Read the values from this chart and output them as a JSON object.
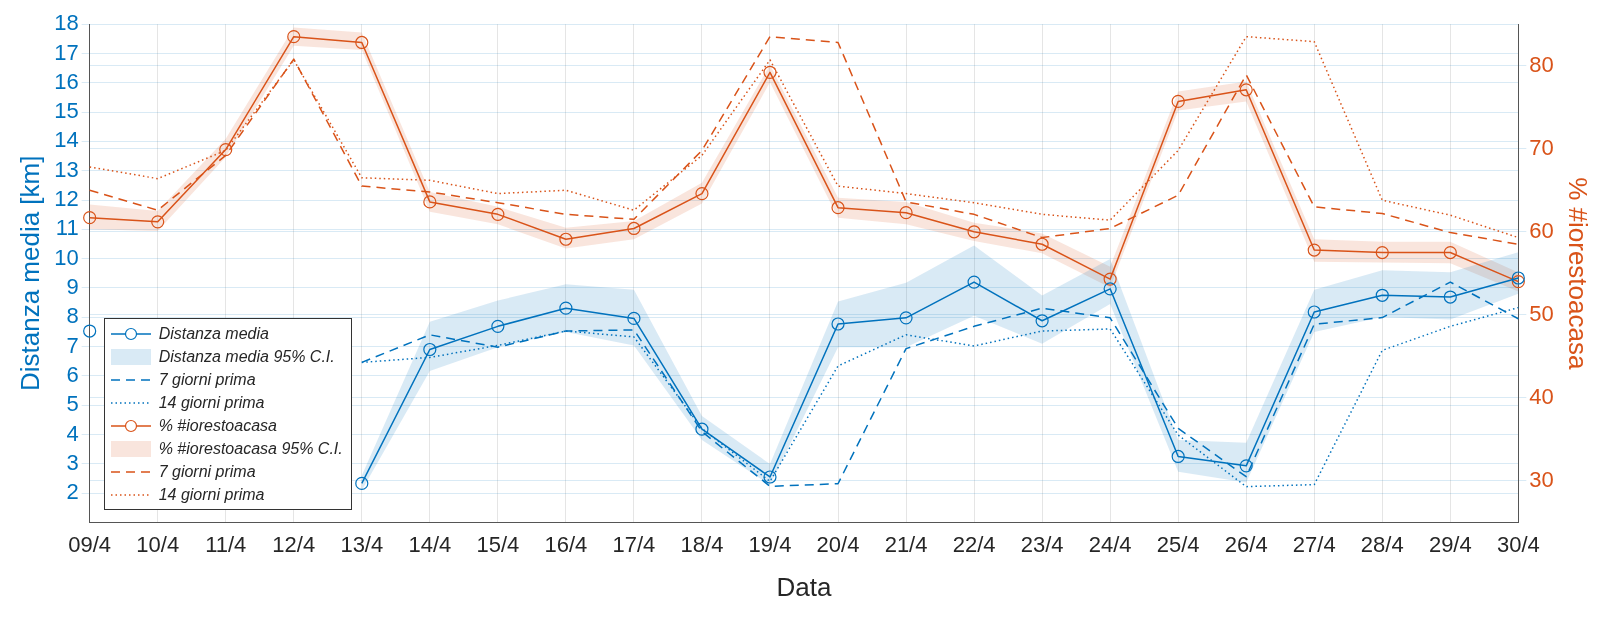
{
  "chart_data": {
    "type": "line",
    "xlabel": "Data",
    "ylabel": "Distanza media [km]",
    "y2label": "% #iorestoacasa",
    "categories": [
      "09/4",
      "10/4",
      "11/4",
      "12/4",
      "13/4",
      "14/4",
      "15/4",
      "16/4",
      "17/4",
      "18/4",
      "19/4",
      "20/4",
      "21/4",
      "22/4",
      "23/4",
      "24/4",
      "25/4",
      "26/4",
      "27/4",
      "28/4",
      "29/4",
      "30/4"
    ],
    "ylim": [
      1,
      18
    ],
    "yticks": [
      2,
      3,
      4,
      5,
      6,
      7,
      8,
      9,
      10,
      11,
      12,
      13,
      14,
      15,
      16,
      17,
      18
    ],
    "y2lim": [
      25,
      85
    ],
    "y2ticks": [
      30,
      40,
      50,
      60,
      70,
      80
    ],
    "grid": true,
    "legend": "bottom left",
    "annotations": [
      "Distanza media 95% C.I.",
      "% #iorestoacasa 95% C.I."
    ],
    "series": [
      {
        "name": "Distanza media",
        "type": "line",
        "color": "#0072bd",
        "marker": "circle",
        "line_style": "solid",
        "values": [
          7.53,
          null,
          null,
          null,
          2.33,
          6.9,
          7.69,
          8.31,
          7.96,
          4.18,
          2.55,
          7.77,
          7.98,
          9.2,
          7.88,
          8.97,
          3.25,
          2.93,
          8.18,
          8.75,
          8.69,
          9.34
        ],
        "lower": [
          null,
          null,
          null,
          null,
          2.1,
          6.17,
          6.98,
          7.5,
          7.04,
          3.81,
          2.28,
          6.98,
          6.98,
          8.05,
          7.1,
          8.45,
          2.73,
          2.36,
          7.5,
          8.01,
          7.92,
          8.8
        ],
        "upper": [
          null,
          null,
          null,
          null,
          2.6,
          7.85,
          8.57,
          9.13,
          8.94,
          4.63,
          2.99,
          8.54,
          9.18,
          10.45,
          8.74,
          9.99,
          3.81,
          3.72,
          8.94,
          9.6,
          9.54,
          10.22
        ]
      },
      {
        "name": "7 giorni prima",
        "type": "line",
        "color": "#0072bd",
        "marker": "none",
        "line_style": "dashed",
        "values": [
          null,
          null,
          null,
          null,
          6.46,
          7.4,
          6.98,
          7.53,
          7.57,
          4.1,
          2.23,
          2.32,
          6.93,
          7.69,
          8.31,
          7.98,
          4.21,
          2.56,
          7.76,
          7.99,
          9.2,
          7.95
        ]
      },
      {
        "name": "14 giorni prima",
        "type": "line",
        "color": "#0072bd",
        "marker": "none",
        "line_style": "dotted",
        "values": [
          null,
          null,
          null,
          null,
          6.46,
          6.63,
          7.04,
          7.53,
          7.33,
          4.2,
          2.4,
          6.34,
          7.4,
          7.02,
          7.53,
          7.6,
          3.98,
          2.22,
          2.29,
          6.87,
          7.69,
          8.33
        ]
      },
      {
        "name": "% #iorestoacasa",
        "type": "line",
        "axis": "y2",
        "color": "#d95319",
        "marker": "circle",
        "line_style": "solid",
        "values": [
          61.7,
          61.2,
          69.9,
          83.5,
          82.8,
          63.6,
          62.1,
          59.1,
          60.4,
          64.6,
          79.2,
          62.9,
          62.3,
          60.0,
          58.5,
          54.3,
          75.7,
          77.1,
          57.8,
          57.5,
          57.5,
          54.0
        ],
        "lower": [
          60.3,
          60.1,
          69.0,
          82.4,
          81.9,
          62.4,
          60.9,
          58.0,
          59.1,
          63.4,
          78.0,
          61.7,
          60.9,
          58.9,
          57.4,
          53.3,
          74.6,
          75.7,
          56.4,
          56.3,
          56.2,
          52.8
        ],
        "upper": [
          63.3,
          62.5,
          71.2,
          84.6,
          84.0,
          64.8,
          63.0,
          60.5,
          61.3,
          65.9,
          80.1,
          64.1,
          63.6,
          61.1,
          59.8,
          55.8,
          76.9,
          78.1,
          59.1,
          58.8,
          58.8,
          55.1
        ]
      },
      {
        "name": "7 giorni prima",
        "type": "line",
        "axis": "y2",
        "color": "#d95319",
        "marker": "none",
        "line_style": "dashed",
        "values": [
          65.0,
          62.6,
          69.2,
          80.8,
          65.5,
          64.8,
          63.5,
          62.1,
          61.5,
          69.8,
          83.5,
          82.8,
          63.6,
          62.1,
          59.3,
          60.4,
          64.4,
          78.9,
          63.0,
          62.2,
          59.9,
          58.5
        ]
      },
      {
        "name": "14 giorni prima",
        "type": "line",
        "axis": "y2",
        "color": "#d95319",
        "marker": "none",
        "line_style": "dotted",
        "values": [
          67.8,
          66.4,
          69.8,
          80.7,
          66.5,
          66.2,
          64.6,
          65.0,
          62.6,
          69.2,
          80.7,
          65.5,
          64.6,
          63.5,
          62.1,
          61.4,
          69.8,
          83.5,
          82.9,
          63.8,
          62.0,
          59.3
        ]
      }
    ]
  }
}
